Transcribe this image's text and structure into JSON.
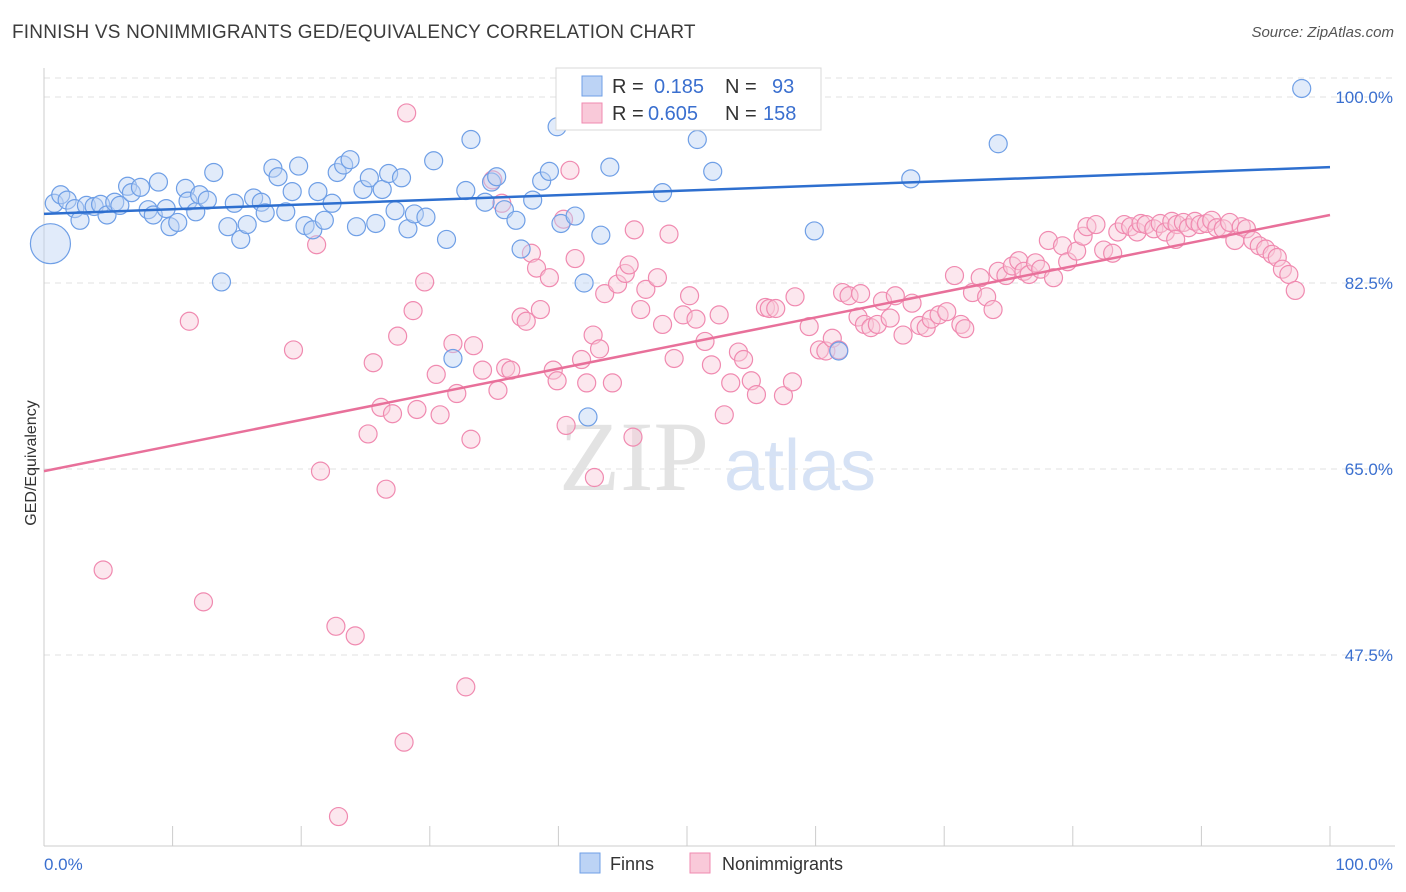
{
  "title": "FINNISH VS NONIMMIGRANTS GED/EQUIVALENCY CORRELATION CHART",
  "source": "Source: ZipAtlas.com",
  "watermark": {
    "part1": "ZIP",
    "part2": "atlas"
  },
  "colors": {
    "finns": "#6f9fe6",
    "nonimmigrants": "#f08ab0",
    "finns_line": "#2e6fcf",
    "nonimmigrants_line": "#e8709a",
    "tick": "#3a6fcf"
  },
  "legend_box": {
    "finns": {
      "r_label": "R =",
      "r_value": "0.185",
      "n_label": "N =",
      "n_value": "93"
    },
    "nonimmigrants": {
      "r_label": "R =",
      "r_value": "0.605",
      "n_label": "N =",
      "n_value": "158"
    }
  },
  "chart_data": {
    "type": "scatter",
    "title": "FINNISH VS NONIMMIGRANTS GED/EQUIVALENCY CORRELATION CHART",
    "xlabel": "",
    "ylabel": "GED/Equivalency",
    "xlim": [
      0,
      100
    ],
    "ylim": [
      30,
      102
    ],
    "x_tick_labels": [
      "0.0%",
      "100.0%"
    ],
    "y_ticks": [
      47.5,
      65.0,
      82.5,
      100.0
    ],
    "y_tick_labels": [
      "47.5%",
      "65.0%",
      "82.5%",
      "100.0%"
    ],
    "grid": true,
    "legend_position": "bottom-center",
    "series": [
      {
        "name": "Finns",
        "r": 0.185,
        "n": 93,
        "trend": {
          "x": [
            0,
            100
          ],
          "y": [
            89.0,
            93.4
          ]
        },
        "points": [
          [
            0.5,
            86.2
          ],
          [
            0.8,
            90.0
          ],
          [
            1.3,
            90.8
          ],
          [
            1.8,
            90.3
          ],
          [
            2.4,
            89.5
          ],
          [
            2.8,
            88.4
          ],
          [
            3.3,
            89.8
          ],
          [
            3.9,
            89.7
          ],
          [
            4.4,
            89.9
          ],
          [
            4.9,
            88.9
          ],
          [
            5.5,
            90.1
          ],
          [
            5.9,
            89.8
          ],
          [
            6.5,
            91.6
          ],
          [
            6.8,
            91.0
          ],
          [
            7.5,
            91.5
          ],
          [
            8.1,
            89.4
          ],
          [
            8.5,
            88.9
          ],
          [
            8.9,
            92.0
          ],
          [
            9.5,
            89.5
          ],
          [
            9.8,
            87.8
          ],
          [
            10.4,
            88.2
          ],
          [
            11.0,
            91.4
          ],
          [
            11.2,
            90.2
          ],
          [
            11.8,
            89.2
          ],
          [
            12.1,
            90.8
          ],
          [
            12.7,
            90.3
          ],
          [
            13.2,
            92.9
          ],
          [
            13.8,
            82.6
          ],
          [
            14.3,
            87.8
          ],
          [
            14.8,
            90.0
          ],
          [
            15.3,
            86.6
          ],
          [
            15.8,
            88.0
          ],
          [
            16.3,
            90.5
          ],
          [
            16.9,
            90.1
          ],
          [
            17.2,
            89.1
          ],
          [
            17.8,
            93.3
          ],
          [
            18.2,
            92.5
          ],
          [
            18.8,
            89.2
          ],
          [
            19.3,
            91.1
          ],
          [
            19.8,
            93.5
          ],
          [
            20.3,
            87.9
          ],
          [
            20.9,
            87.5
          ],
          [
            21.3,
            91.1
          ],
          [
            21.8,
            88.4
          ],
          [
            22.4,
            90.0
          ],
          [
            22.8,
            92.9
          ],
          [
            23.3,
            93.6
          ],
          [
            23.8,
            94.1
          ],
          [
            24.3,
            87.8
          ],
          [
            24.8,
            91.3
          ],
          [
            25.3,
            92.4
          ],
          [
            25.8,
            88.1
          ],
          [
            26.3,
            91.3
          ],
          [
            26.8,
            92.8
          ],
          [
            27.3,
            89.3
          ],
          [
            27.8,
            92.4
          ],
          [
            28.3,
            87.6
          ],
          [
            28.8,
            89.0
          ],
          [
            29.7,
            88.7
          ],
          [
            30.3,
            94.0
          ],
          [
            31.3,
            86.6
          ],
          [
            31.8,
            75.4
          ],
          [
            32.8,
            91.2
          ],
          [
            33.2,
            96.0
          ],
          [
            34.3,
            90.1
          ],
          [
            34.8,
            92.0
          ],
          [
            35.2,
            92.5
          ],
          [
            35.8,
            89.4
          ],
          [
            36.7,
            88.4
          ],
          [
            37.1,
            85.7
          ],
          [
            38.0,
            90.3
          ],
          [
            38.7,
            92.1
          ],
          [
            39.3,
            93.0
          ],
          [
            39.9,
            97.2
          ],
          [
            40.2,
            88.1
          ],
          [
            41.3,
            88.8
          ],
          [
            42.0,
            82.5
          ],
          [
            42.3,
            69.9
          ],
          [
            43.3,
            87.0
          ],
          [
            44.0,
            93.4
          ],
          [
            44.3,
            98.6
          ],
          [
            48.1,
            91.0
          ],
          [
            50.8,
            96.0
          ],
          [
            52.0,
            93.0
          ],
          [
            56.4,
            101.1
          ],
          [
            57.7,
            101.4
          ],
          [
            59.7,
            101.0
          ],
          [
            59.9,
            87.4
          ],
          [
            61.8,
            76.1
          ],
          [
            67.4,
            92.3
          ],
          [
            74.2,
            95.6
          ],
          [
            97.8,
            100.8
          ]
        ],
        "sizes_note": "first point drawn large"
      },
      {
        "name": "Nonimmigrants",
        "r": 0.605,
        "n": 158,
        "trend": {
          "x": [
            0,
            100
          ],
          "y": [
            64.8,
            88.9
          ]
        },
        "points": [
          [
            4.6,
            55.5
          ],
          [
            11.3,
            78.9
          ],
          [
            12.4,
            52.5
          ],
          [
            19.4,
            76.2
          ],
          [
            21.2,
            86.1
          ],
          [
            21.5,
            64.8
          ],
          [
            22.7,
            50.2
          ],
          [
            24.2,
            49.3
          ],
          [
            25.2,
            68.3
          ],
          [
            25.6,
            75.0
          ],
          [
            26.2,
            70.8
          ],
          [
            26.6,
            63.1
          ],
          [
            27.1,
            70.2
          ],
          [
            27.5,
            77.5
          ],
          [
            28.0,
            39.3
          ],
          [
            28.2,
            98.5
          ],
          [
            28.7,
            79.9
          ],
          [
            29.0,
            70.6
          ],
          [
            29.6,
            82.6
          ],
          [
            30.5,
            73.9
          ],
          [
            30.8,
            70.1
          ],
          [
            31.8,
            76.8
          ],
          [
            32.1,
            72.1
          ],
          [
            32.8,
            44.5
          ],
          [
            33.2,
            67.8
          ],
          [
            33.4,
            76.6
          ],
          [
            34.1,
            74.3
          ],
          [
            34.9,
            92.2
          ],
          [
            35.3,
            72.4
          ],
          [
            35.6,
            90.0
          ],
          [
            35.9,
            74.5
          ],
          [
            36.3,
            74.3
          ],
          [
            37.1,
            79.3
          ],
          [
            37.5,
            78.9
          ],
          [
            37.9,
            85.3
          ],
          [
            38.3,
            83.9
          ],
          [
            38.6,
            80.0
          ],
          [
            39.3,
            83.0
          ],
          [
            39.6,
            74.3
          ],
          [
            39.9,
            73.3
          ],
          [
            40.4,
            88.5
          ],
          [
            40.6,
            69.1
          ],
          [
            40.9,
            93.1
          ],
          [
            41.3,
            84.8
          ],
          [
            41.8,
            75.3
          ],
          [
            42.2,
            73.1
          ],
          [
            42.7,
            77.6
          ],
          [
            42.8,
            64.2
          ],
          [
            43.2,
            76.3
          ],
          [
            43.6,
            81.5
          ],
          [
            44.2,
            73.1
          ],
          [
            44.6,
            82.4
          ],
          [
            45.2,
            83.4
          ],
          [
            45.5,
            84.2
          ],
          [
            45.8,
            68.0
          ],
          [
            45.9,
            87.5
          ],
          [
            46.4,
            80.0
          ],
          [
            46.8,
            81.9
          ],
          [
            47.7,
            83.0
          ],
          [
            48.1,
            78.6
          ],
          [
            48.6,
            87.1
          ],
          [
            49.0,
            75.4
          ],
          [
            49.7,
            79.5
          ],
          [
            50.2,
            81.3
          ],
          [
            50.7,
            79.1
          ],
          [
            51.4,
            77.0
          ],
          [
            51.9,
            74.8
          ],
          [
            52.5,
            79.5
          ],
          [
            52.9,
            70.1
          ],
          [
            53.4,
            73.1
          ],
          [
            54.0,
            76.0
          ],
          [
            54.4,
            75.3
          ],
          [
            55.0,
            73.3
          ],
          [
            55.4,
            72.0
          ],
          [
            56.1,
            80.2
          ],
          [
            56.4,
            80.1
          ],
          [
            56.9,
            80.1
          ],
          [
            57.5,
            71.9
          ],
          [
            58.2,
            73.2
          ],
          [
            58.4,
            81.2
          ],
          [
            59.5,
            78.4
          ],
          [
            60.3,
            76.2
          ],
          [
            60.8,
            76.1
          ],
          [
            61.3,
            77.3
          ],
          [
            61.8,
            76.2
          ],
          [
            62.1,
            81.6
          ],
          [
            62.6,
            81.3
          ],
          [
            63.3,
            79.3
          ],
          [
            63.8,
            78.6
          ],
          [
            64.3,
            78.3
          ],
          [
            64.8,
            78.6
          ],
          [
            65.2,
            80.8
          ],
          [
            65.8,
            79.2
          ],
          [
            66.2,
            81.3
          ],
          [
            66.8,
            77.6
          ],
          [
            67.5,
            80.6
          ],
          [
            68.1,
            78.5
          ],
          [
            68.6,
            78.3
          ],
          [
            69.0,
            79.1
          ],
          [
            69.6,
            79.5
          ],
          [
            70.2,
            79.8
          ],
          [
            70.8,
            83.2
          ],
          [
            71.3,
            78.6
          ],
          [
            71.6,
            78.2
          ],
          [
            72.2,
            81.6
          ],
          [
            72.8,
            83.0
          ],
          [
            73.3,
            81.2
          ],
          [
            73.8,
            80.0
          ],
          [
            74.2,
            83.6
          ],
          [
            74.8,
            83.2
          ],
          [
            75.3,
            84.1
          ],
          [
            75.8,
            84.6
          ],
          [
            76.2,
            83.6
          ],
          [
            76.6,
            83.3
          ],
          [
            77.1,
            84.4
          ],
          [
            77.5,
            83.8
          ],
          [
            78.1,
            86.5
          ],
          [
            78.5,
            83.0
          ],
          [
            79.2,
            86.0
          ],
          [
            79.6,
            84.5
          ],
          [
            80.3,
            85.5
          ],
          [
            80.8,
            86.9
          ],
          [
            81.1,
            87.8
          ],
          [
            81.8,
            88.0
          ],
          [
            82.4,
            85.6
          ],
          [
            83.1,
            85.3
          ],
          [
            83.5,
            87.3
          ],
          [
            84.0,
            88.0
          ],
          [
            84.5,
            87.8
          ],
          [
            85.0,
            87.3
          ],
          [
            85.3,
            88.1
          ],
          [
            85.7,
            88.0
          ],
          [
            86.3,
            87.6
          ],
          [
            86.8,
            88.1
          ],
          [
            87.2,
            87.3
          ],
          [
            87.7,
            88.3
          ],
          [
            88.1,
            88.0
          ],
          [
            88.6,
            88.2
          ],
          [
            89.0,
            87.7
          ],
          [
            89.5,
            88.3
          ],
          [
            89.9,
            88.0
          ],
          [
            90.4,
            88.1
          ],
          [
            90.8,
            88.4
          ],
          [
            91.2,
            87.7
          ],
          [
            91.7,
            87.6
          ],
          [
            92.2,
            88.2
          ],
          [
            92.6,
            86.5
          ],
          [
            93.1,
            87.8
          ],
          [
            93.5,
            87.6
          ],
          [
            94.0,
            86.5
          ],
          [
            94.5,
            86.0
          ],
          [
            95.0,
            85.7
          ],
          [
            95.5,
            85.2
          ],
          [
            95.9,
            84.9
          ],
          [
            96.3,
            83.8
          ],
          [
            96.8,
            83.3
          ],
          [
            97.3,
            81.8
          ],
          [
            22.9,
            32.3
          ],
          [
            63.5,
            81.5
          ],
          [
            88.0,
            86.6
          ]
        ]
      }
    ]
  }
}
